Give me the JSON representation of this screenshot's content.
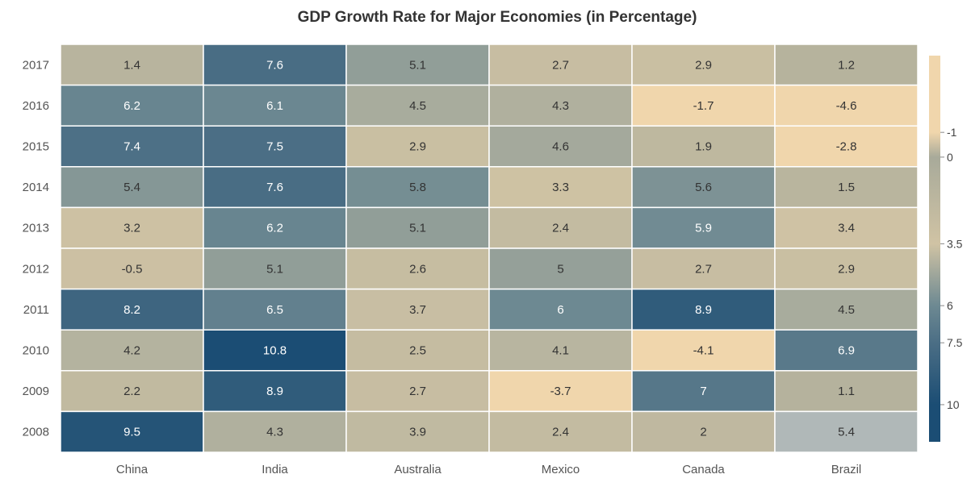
{
  "chart_data": {
    "type": "heatmap",
    "title": "GDP Growth Rate for Major Economies (in Percentage)",
    "x_categories": [
      "China",
      "India",
      "Australia",
      "Mexico",
      "Canada",
      "Brazil"
    ],
    "y_categories": [
      "2017",
      "2016",
      "2015",
      "2014",
      "2013",
      "2012",
      "2011",
      "2010",
      "2009",
      "2008"
    ],
    "values": [
      [
        1.4,
        7.6,
        5.1,
        2.7,
        2.9,
        1.2
      ],
      [
        6.2,
        6.1,
        4.5,
        4.3,
        -1.7,
        -4.6
      ],
      [
        7.4,
        7.5,
        2.9,
        4.6,
        1.9,
        -2.8
      ],
      [
        5.4,
        7.6,
        5.8,
        3.3,
        5.6,
        1.5
      ],
      [
        3.2,
        6.2,
        5.1,
        2.4,
        5.9,
        3.4
      ],
      [
        -0.5,
        5.1,
        2.6,
        5,
        2.7,
        2.9
      ],
      [
        8.2,
        6.5,
        3.7,
        6,
        8.9,
        4.5
      ],
      [
        4.2,
        10.8,
        2.5,
        4.1,
        -4.1,
        6.9
      ],
      [
        2.2,
        8.9,
        2.7,
        -3.7,
        7,
        1.1
      ],
      [
        9.5,
        4.3,
        3.9,
        2.4,
        2,
        5.4
      ]
    ],
    "legend": {
      "placement": "right",
      "ticks": [
        "-1",
        "0",
        "3.5",
        "6",
        "7.5",
        "10"
      ],
      "colors": [
        "#f0d6ac",
        "#a8aa9a",
        "#d0c3a4",
        "#6d8992",
        "#4b6e85",
        "#1b4d74"
      ]
    },
    "missing_cell_color": "#b0b8b8"
  }
}
